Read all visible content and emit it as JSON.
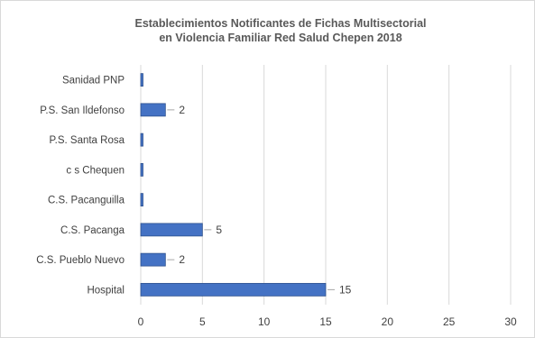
{
  "chart_data": {
    "type": "bar",
    "orientation": "horizontal",
    "title_line1": "Establecimientos Notificantes de Fichas Multisectorial",
    "title_line2": "en Violencia Familiar Red Salud Chepen 2018",
    "categories": [
      "Sanidad PNP",
      "P.S. San Ildefonso",
      "P.S. Santa Rosa",
      "c s Chequen",
      "C.S. Pacanguilla",
      "C.S. Pacanga",
      "C.S. Pueblo Nuevo",
      "Hospital"
    ],
    "values": [
      0,
      2,
      0,
      0,
      0,
      5,
      2,
      15
    ],
    "data_labels": [
      "",
      "2",
      "",
      "",
      "",
      "5",
      "2",
      "15"
    ],
    "xlim": [
      0,
      30
    ],
    "xticks": [
      "0",
      "5",
      "10",
      "15",
      "20",
      "25",
      "30"
    ],
    "grid": "vertical",
    "bar_color": "#4472c4"
  }
}
